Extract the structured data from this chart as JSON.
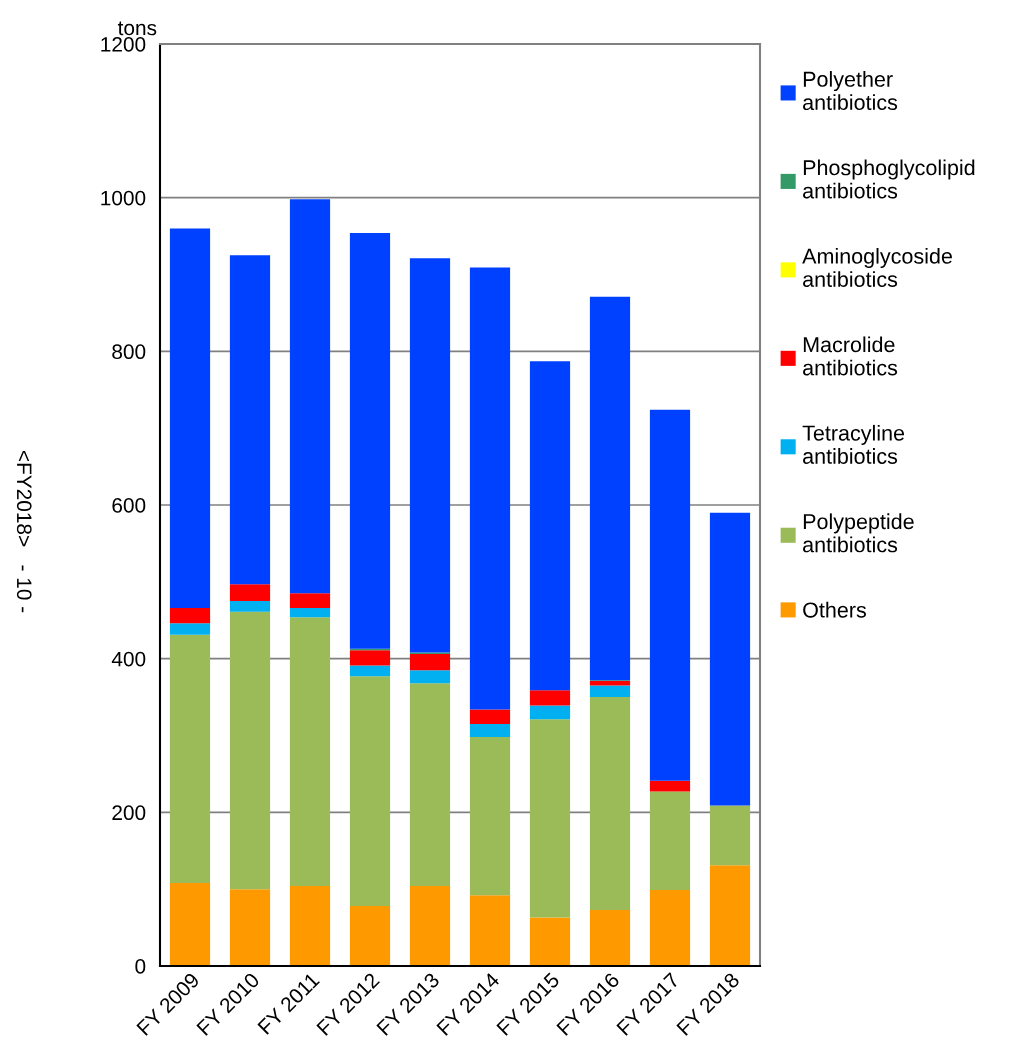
{
  "chart_data": {
    "type": "bar",
    "stacked": true,
    "ylabel": "tons",
    "categories": [
      "FY 2009",
      "FY 2010",
      "FY 2011",
      "FY 2012",
      "FY 2013",
      "FY 2014",
      "FY 2015",
      "FY 2016",
      "FY 2017",
      "FY 2018"
    ],
    "series": [
      {
        "name": "Others",
        "color": "#ff9900",
        "values": [
          108,
          100,
          104,
          78,
          104,
          92,
          63,
          73,
          99,
          131
        ]
      },
      {
        "name": "Polypeptide\nantibiotics",
        "color": "#9bbb59",
        "values": [
          323,
          361,
          350,
          299,
          264,
          206,
          258,
          277,
          128,
          78
        ]
      },
      {
        "name": "Tetracyline\nantibiotics",
        "color": "#00b0f0",
        "values": [
          15,
          14,
          12,
          14,
          17,
          17,
          18,
          15,
          0,
          0
        ]
      },
      {
        "name": "Macrolide\nantibiotics",
        "color": "#ff0000",
        "values": [
          20,
          22,
          19,
          20,
          21,
          19,
          20,
          6,
          14,
          0
        ]
      },
      {
        "name": "Aminoglycoside\nantibiotics",
        "color": "#ffff00",
        "values": [
          0,
          0,
          0,
          0,
          0,
          0,
          0,
          0,
          0,
          0
        ]
      },
      {
        "name": "Phosphoglycolipid\nantibiotics",
        "color": "#339966",
        "values": [
          0,
          0,
          0,
          2,
          2,
          0,
          0,
          1,
          0,
          0
        ]
      },
      {
        "name": "Polyether\nantibiotics",
        "color": "#0040ff",
        "values": [
          494,
          428,
          513,
          541,
          513,
          575,
          428,
          499,
          483,
          381
        ]
      }
    ],
    "ylim": [
      0,
      1200
    ],
    "yticks": [
      0,
      200,
      400,
      600,
      800,
      1000,
      1200
    ],
    "grid": "y",
    "legend": "right",
    "annotations": [
      "<FY2018>   - 10 -"
    ]
  }
}
